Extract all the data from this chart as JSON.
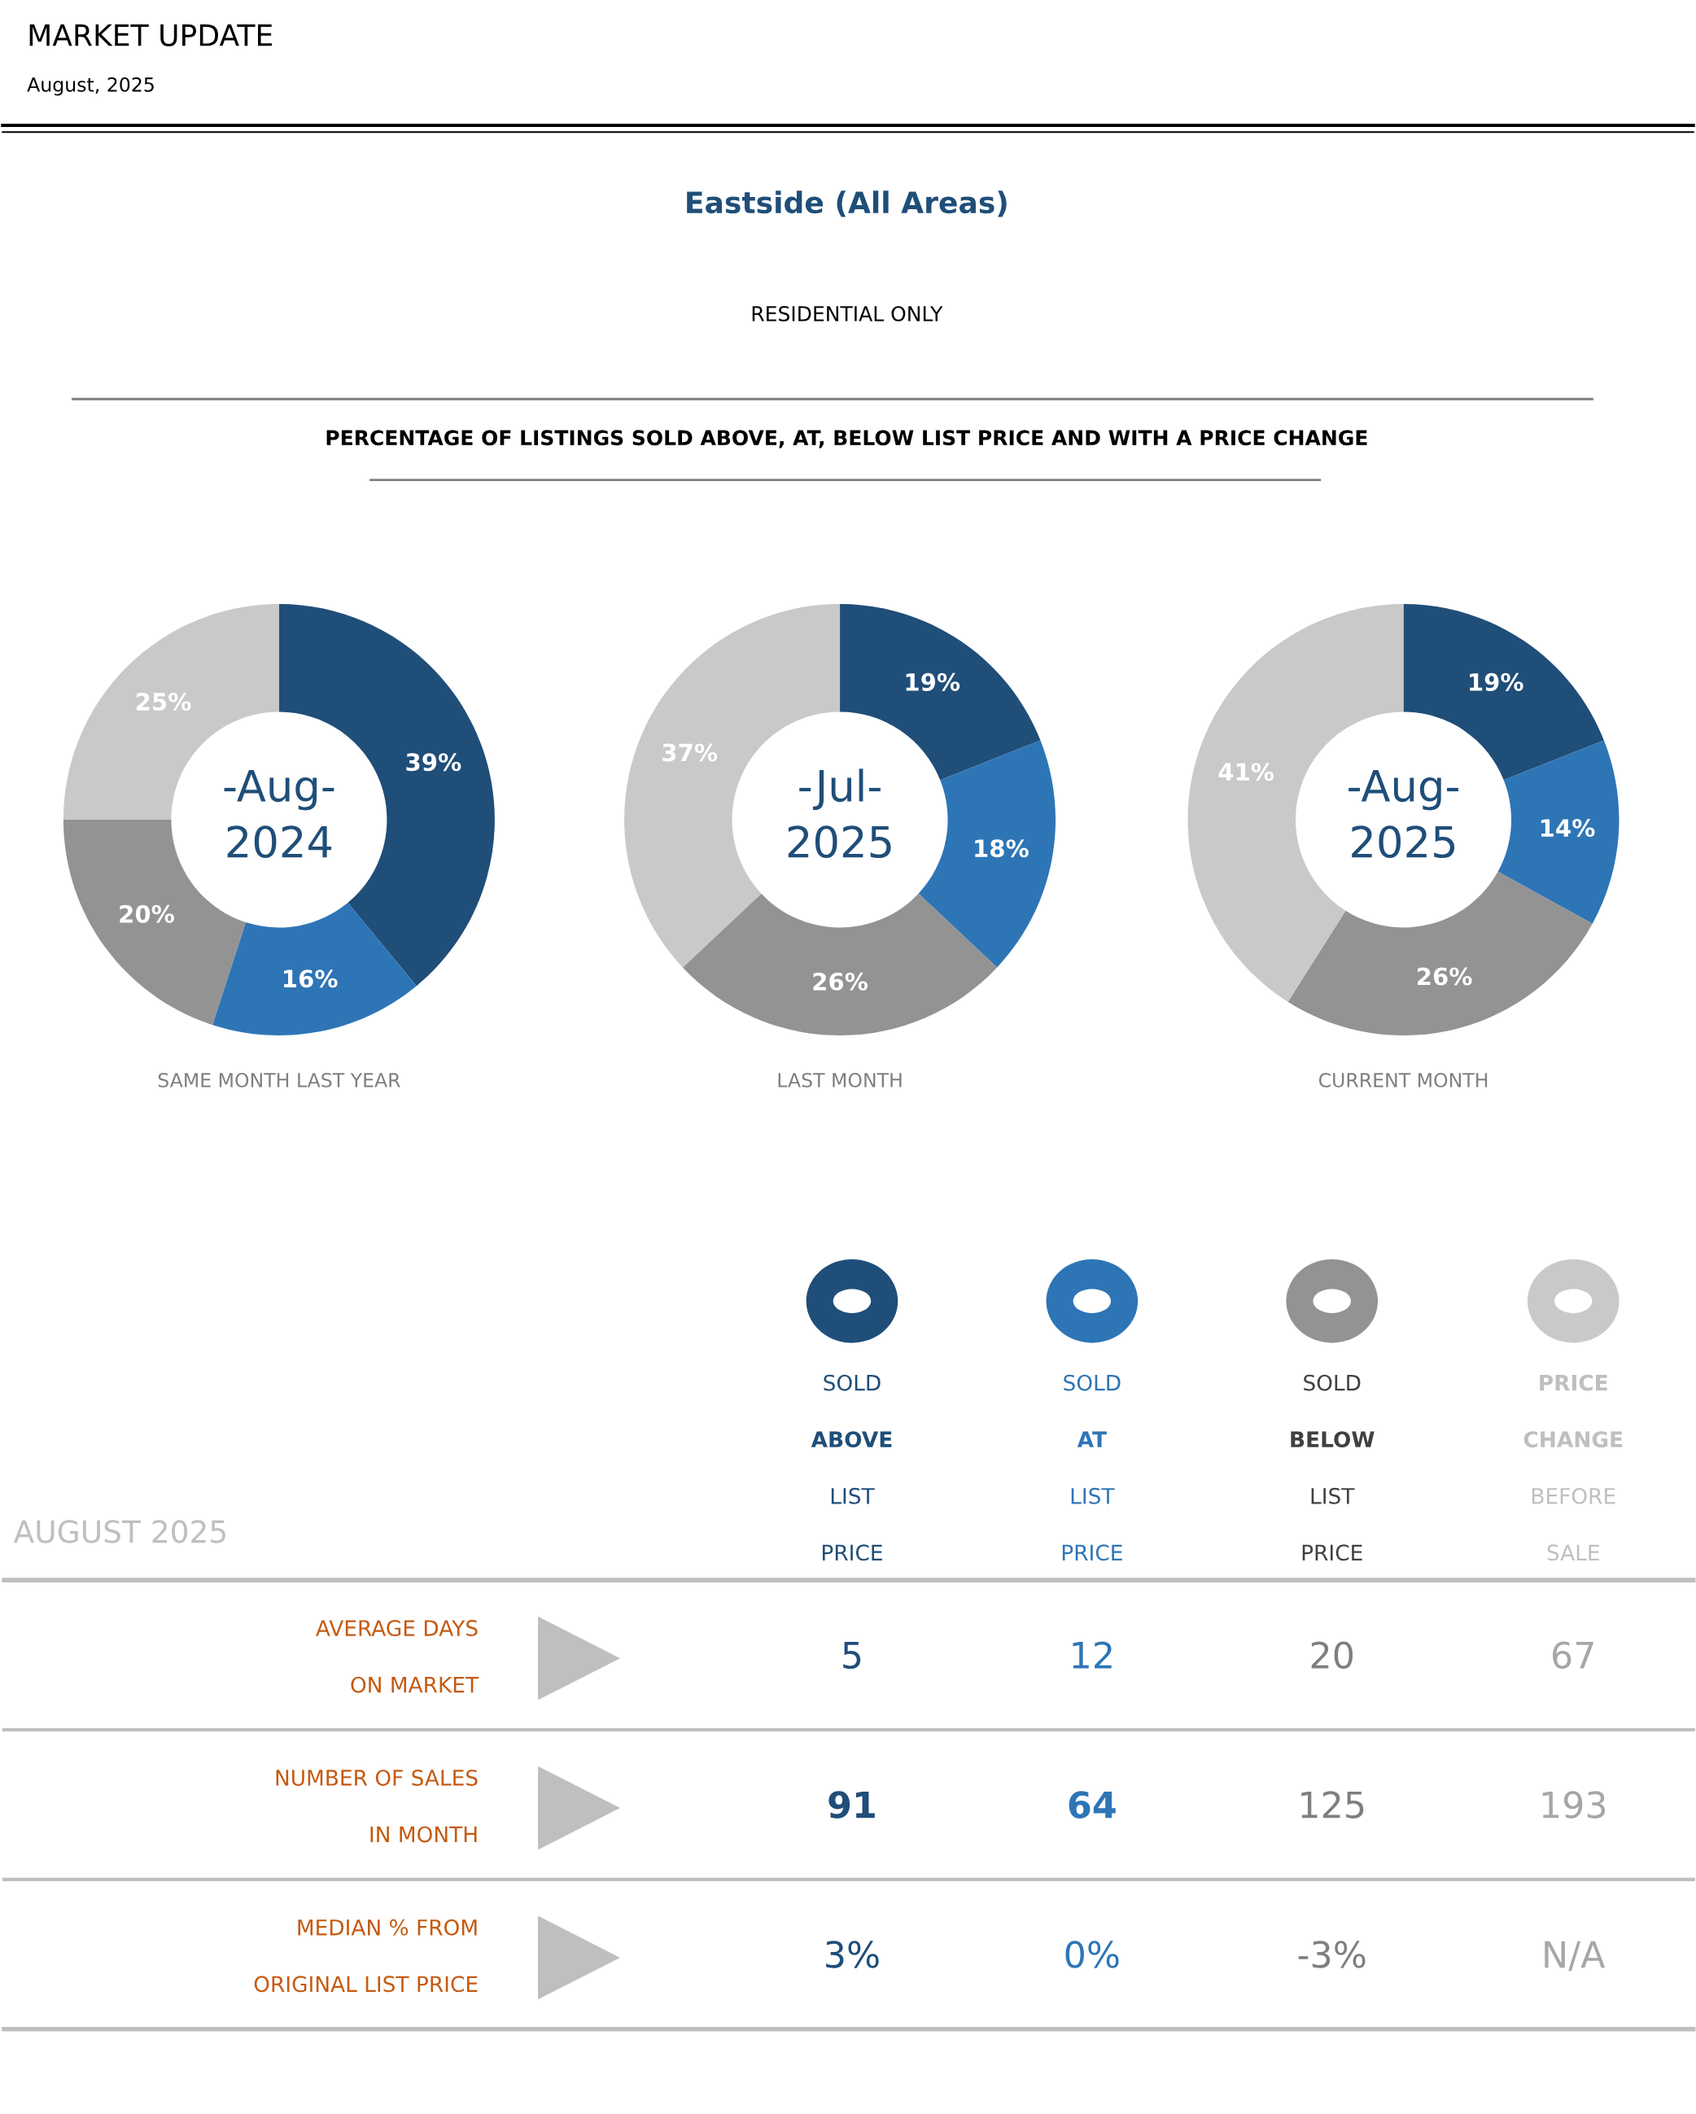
{
  "chart_data": [
    {
      "type": "other",
      "title": "MARKET UPDATE",
      "subtitle": "August, 2025",
      "annotations": [
        "Eastside (All Areas)",
        "RESIDENTIAL ONLY",
        "PERCENTAGE OF LISTINGS SOLD ABOVE, AT, BELOW LIST PRICE AND WITH A PRICE CHANGE"
      ]
    },
    {
      "type": "donut",
      "title": "SAME MONTH LAST YEAR",
      "annotations": [
        "-Aug-",
        "2024"
      ],
      "categories": [
        null,
        null,
        null,
        null
      ],
      "values": [
        39,
        16,
        20,
        25
      ],
      "value_labels": [
        "39%",
        "16%",
        "20%",
        "25%"
      ],
      "colors": [
        "#1f4e79",
        "#2e75b6",
        "#939393",
        "#c9c9c9"
      ]
    },
    {
      "type": "donut",
      "title": "LAST MONTH",
      "annotations": [
        "-Jul-",
        "2025"
      ],
      "categories": [
        null,
        null,
        null,
        null
      ],
      "values": [
        19,
        18,
        26,
        37
      ],
      "value_labels": [
        "19%",
        "18%",
        "26%",
        "37%"
      ],
      "colors": [
        "#1f4e79",
        "#2e75b6",
        "#939393",
        "#c9c9c9"
      ]
    },
    {
      "type": "donut",
      "title": "CURRENT MONTH",
      "annotations": [
        "-Aug-",
        "2025"
      ],
      "categories": [
        null,
        null,
        null,
        null
      ],
      "values": [
        19,
        14,
        26,
        41
      ],
      "value_labels": [
        "19%",
        "14%",
        "26%",
        "41%"
      ],
      "colors": [
        "#1f4e79",
        "#2e75b6",
        "#939393",
        "#c9c9c9"
      ]
    },
    {
      "type": "other",
      "title": "AUGUST 2025",
      "categories": [
        "SOLD\nABOVE\nLIST\nPRICE",
        "SOLD\nAT\nLIST\nPRICE",
        "SOLD\nBELOW\nLIST\nPRICE",
        "PRICE\nCHANGE\nBEFORE\nSALE"
      ],
      "colors": [
        "#1f4e79",
        "#2e75b6",
        "#939393",
        "#c9c9c9"
      ],
      "y_categories": [
        "AVERAGE DAYS\nON MARKET",
        "NUMBER OF SALES\nIN MONTH",
        "MEDIAN % FROM\nORIGINAL LIST PRICE"
      ],
      "cell_labels": [
        [
          "5",
          "12",
          "20",
          "67"
        ],
        [
          "91",
          "64",
          "125",
          "193"
        ],
        [
          "3%",
          "0%",
          "-3%",
          "N/A"
        ]
      ]
    }
  ]
}
